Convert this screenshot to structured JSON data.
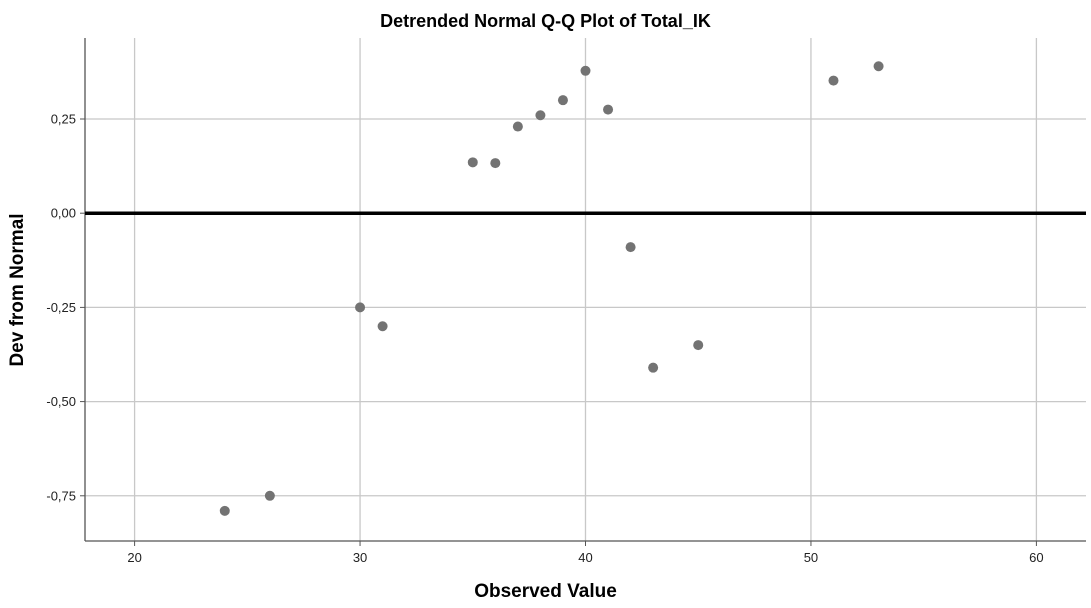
{
  "chart_data": {
    "type": "scatter",
    "title": "Detrended Normal Q-Q Plot of Total_IK",
    "xlabel": "Observed Value",
    "ylabel": "Dev from Normal",
    "xlim": [
      17.8,
      62.2
    ],
    "ylim": [
      -0.87,
      0.465
    ],
    "xticks": [
      20,
      30,
      40,
      50,
      60
    ],
    "xtick_labels": [
      "20",
      "30",
      "40",
      "50",
      "60"
    ],
    "yticks": [
      -0.75,
      -0.5,
      -0.25,
      0.0,
      0.25
    ],
    "ytick_labels": [
      "-0,75",
      "-0,50",
      "-0,25",
      "0,00",
      "0,25"
    ],
    "grid": true,
    "reference_line_y": 0,
    "point_color": "#737373",
    "points": [
      {
        "x": 24,
        "y": -0.79
      },
      {
        "x": 26,
        "y": -0.75
      },
      {
        "x": 30,
        "y": -0.25
      },
      {
        "x": 31,
        "y": -0.3
      },
      {
        "x": 35,
        "y": 0.135
      },
      {
        "x": 36,
        "y": 0.133
      },
      {
        "x": 37,
        "y": 0.23
      },
      {
        "x": 38,
        "y": 0.26
      },
      {
        "x": 39,
        "y": 0.3
      },
      {
        "x": 40,
        "y": 0.378
      },
      {
        "x": 41,
        "y": 0.275
      },
      {
        "x": 42,
        "y": -0.09
      },
      {
        "x": 43,
        "y": -0.41
      },
      {
        "x": 45,
        "y": -0.35
      },
      {
        "x": 51,
        "y": 0.352
      },
      {
        "x": 53,
        "y": 0.39
      }
    ]
  }
}
